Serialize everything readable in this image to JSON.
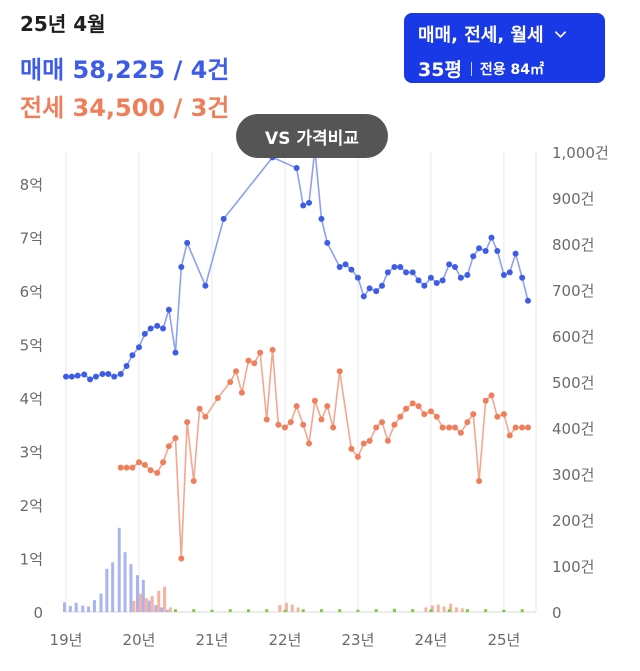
{
  "header": {
    "date": "25년 4월",
    "sale": "매매 58,225 / 4건",
    "jeonse": "전세 34,500 / 3건"
  },
  "filter": {
    "types": "매매, 전세, 월세",
    "size": "35평",
    "area": "전용 84㎡"
  },
  "compare_label": "VS 가격비교",
  "colors": {
    "sale": "#3d5ce8",
    "jeonse": "#ef7f5a",
    "filter_bg": "#1a39e6",
    "pill_bg": "#555555",
    "grid": "#e9e9e9",
    "volume_sale": "#aab4f0",
    "volume_jeonse": "#f5b3a0",
    "volume_rent": "#7ac943"
  },
  "chart_data": {
    "type": "line",
    "x_ticks": [
      "19년",
      "20년",
      "21년",
      "22년",
      "23년",
      "24년",
      "25년"
    ],
    "y_left_ticks": [
      "0",
      "1억",
      "2억",
      "3억",
      "4억",
      "5억",
      "6억",
      "7억",
      "8억"
    ],
    "y_left_range": [
      0,
      8.6
    ],
    "y_right_ticks": [
      "0",
      "100건",
      "200건",
      "300건",
      "400건",
      "500건",
      "600건",
      "700건",
      "800건",
      "900건",
      "1,000건"
    ],
    "y_right_range": [
      0,
      1000
    ],
    "grid": "vertical",
    "series": [
      {
        "key": "sale",
        "points": [
          [
            2019.0,
            4.4
          ],
          [
            2019.08,
            4.4
          ],
          [
            2019.16,
            4.42
          ],
          [
            2019.25,
            4.44
          ],
          [
            2019.33,
            4.35
          ],
          [
            2019.41,
            4.4
          ],
          [
            2019.5,
            4.45
          ],
          [
            2019.58,
            4.45
          ],
          [
            2019.66,
            4.4
          ],
          [
            2019.75,
            4.45
          ],
          [
            2019.83,
            4.6
          ],
          [
            2019.91,
            4.8
          ],
          [
            2020.0,
            4.95
          ],
          [
            2020.08,
            5.2
          ],
          [
            2020.16,
            5.3
          ],
          [
            2020.25,
            5.35
          ],
          [
            2020.33,
            5.3
          ],
          [
            2020.41,
            5.65
          ],
          [
            2020.5,
            4.85
          ],
          [
            2020.58,
            6.45
          ],
          [
            2020.66,
            6.9
          ],
          [
            2020.91,
            6.1
          ],
          [
            2021.16,
            7.35
          ],
          [
            2021.83,
            8.5
          ],
          [
            2022.16,
            8.3
          ],
          [
            2022.25,
            7.6
          ],
          [
            2022.33,
            7.65
          ],
          [
            2022.41,
            8.65
          ],
          [
            2022.5,
            7.35
          ],
          [
            2022.58,
            6.9
          ],
          [
            2022.75,
            6.45
          ],
          [
            2022.83,
            6.5
          ],
          [
            2022.91,
            6.4
          ],
          [
            2023.0,
            6.25
          ],
          [
            2023.08,
            5.9
          ],
          [
            2023.16,
            6.05
          ],
          [
            2023.25,
            6.0
          ],
          [
            2023.33,
            6.1
          ],
          [
            2023.41,
            6.35
          ],
          [
            2023.5,
            6.45
          ],
          [
            2023.58,
            6.45
          ],
          [
            2023.66,
            6.35
          ],
          [
            2023.75,
            6.35
          ],
          [
            2023.83,
            6.2
          ],
          [
            2023.91,
            6.1
          ],
          [
            2024.0,
            6.25
          ],
          [
            2024.08,
            6.15
          ],
          [
            2024.16,
            6.2
          ],
          [
            2024.25,
            6.5
          ],
          [
            2024.33,
            6.45
          ],
          [
            2024.41,
            6.25
          ],
          [
            2024.5,
            6.3
          ],
          [
            2024.58,
            6.65
          ],
          [
            2024.66,
            6.8
          ],
          [
            2024.75,
            6.75
          ],
          [
            2024.83,
            7.0
          ],
          [
            2024.91,
            6.75
          ],
          [
            2025.0,
            6.3
          ],
          [
            2025.08,
            6.35
          ],
          [
            2025.16,
            6.7
          ],
          [
            2025.25,
            6.25
          ],
          [
            2025.33,
            5.82
          ]
        ]
      },
      {
        "key": "jeonse",
        "points": [
          [
            2019.75,
            2.7
          ],
          [
            2019.83,
            2.7
          ],
          [
            2019.91,
            2.7
          ],
          [
            2020.0,
            2.8
          ],
          [
            2020.08,
            2.75
          ],
          [
            2020.16,
            2.65
          ],
          [
            2020.25,
            2.6
          ],
          [
            2020.33,
            2.8
          ],
          [
            2020.41,
            3.1
          ],
          [
            2020.5,
            3.25
          ],
          [
            2020.58,
            1.0
          ],
          [
            2020.66,
            3.55
          ],
          [
            2020.75,
            2.45
          ],
          [
            2020.83,
            3.8
          ],
          [
            2020.91,
            3.65
          ],
          [
            2021.08,
            4.0
          ],
          [
            2021.25,
            4.3
          ],
          [
            2021.33,
            4.5
          ],
          [
            2021.41,
            4.1
          ],
          [
            2021.5,
            4.7
          ],
          [
            2021.58,
            4.65
          ],
          [
            2021.66,
            4.85
          ],
          [
            2021.75,
            3.6
          ],
          [
            2021.83,
            4.9
          ],
          [
            2021.91,
            3.5
          ],
          [
            2022.0,
            3.45
          ],
          [
            2022.08,
            3.55
          ],
          [
            2022.16,
            3.85
          ],
          [
            2022.25,
            3.5
          ],
          [
            2022.33,
            3.15
          ],
          [
            2022.41,
            3.95
          ],
          [
            2022.5,
            3.6
          ],
          [
            2022.58,
            3.85
          ],
          [
            2022.66,
            3.45
          ],
          [
            2022.75,
            4.5
          ],
          [
            2022.91,
            3.05
          ],
          [
            2023.0,
            2.9
          ],
          [
            2023.08,
            3.15
          ],
          [
            2023.16,
            3.2
          ],
          [
            2023.25,
            3.45
          ],
          [
            2023.33,
            3.55
          ],
          [
            2023.41,
            3.2
          ],
          [
            2023.5,
            3.5
          ],
          [
            2023.58,
            3.65
          ],
          [
            2023.66,
            3.8
          ],
          [
            2023.75,
            3.9
          ],
          [
            2023.83,
            3.85
          ],
          [
            2023.91,
            3.7
          ],
          [
            2024.0,
            3.75
          ],
          [
            2024.08,
            3.65
          ],
          [
            2024.16,
            3.45
          ],
          [
            2024.25,
            3.45
          ],
          [
            2024.33,
            3.45
          ],
          [
            2024.41,
            3.35
          ],
          [
            2024.5,
            3.55
          ],
          [
            2024.58,
            3.7
          ],
          [
            2024.66,
            2.45
          ],
          [
            2024.75,
            3.95
          ],
          [
            2024.83,
            4.05
          ],
          [
            2024.91,
            3.65
          ],
          [
            2025.0,
            3.7
          ],
          [
            2025.08,
            3.3
          ],
          [
            2025.16,
            3.45
          ],
          [
            2025.25,
            3.45
          ],
          [
            2025.33,
            3.45
          ]
        ]
      }
    ],
    "volume_bars": [
      {
        "key": "sale",
        "values": [
          [
            2019.0,
            21
          ],
          [
            2019.08,
            13
          ],
          [
            2019.16,
            20
          ],
          [
            2019.25,
            14
          ],
          [
            2019.33,
            12
          ],
          [
            2019.41,
            26
          ],
          [
            2019.5,
            40
          ],
          [
            2019.58,
            94
          ],
          [
            2019.66,
            108
          ],
          [
            2019.75,
            183
          ],
          [
            2019.83,
            130
          ],
          [
            2019.91,
            104
          ],
          [
            2020.0,
            80
          ],
          [
            2020.08,
            70
          ],
          [
            2020.16,
            25
          ],
          [
            2020.25,
            15
          ],
          [
            2020.33,
            10
          ],
          [
            2020.41,
            5
          ]
        ]
      },
      {
        "key": "jeonse",
        "values": [
          [
            2019.91,
            24
          ],
          [
            2020.0,
            40
          ],
          [
            2020.08,
            30
          ],
          [
            2020.16,
            35
          ],
          [
            2020.25,
            46
          ],
          [
            2020.33,
            55
          ],
          [
            2020.41,
            10
          ],
          [
            2021.91,
            15
          ],
          [
            2022.0,
            20
          ],
          [
            2022.08,
            16
          ],
          [
            2022.16,
            10
          ],
          [
            2023.91,
            10
          ],
          [
            2024.0,
            14
          ],
          [
            2024.08,
            16
          ],
          [
            2024.16,
            12
          ],
          [
            2024.25,
            18
          ],
          [
            2024.33,
            10
          ],
          [
            2024.41,
            8
          ]
        ]
      },
      {
        "key": "rent",
        "values": [
          [
            2020.5,
            6
          ],
          [
            2020.75,
            6
          ],
          [
            2021.0,
            5
          ],
          [
            2021.25,
            6
          ],
          [
            2021.5,
            6
          ],
          [
            2021.75,
            6
          ],
          [
            2022.0,
            5
          ],
          [
            2022.25,
            6
          ],
          [
            2022.5,
            6
          ],
          [
            2022.75,
            6
          ],
          [
            2023.0,
            5
          ],
          [
            2023.25,
            6
          ],
          [
            2023.5,
            7
          ],
          [
            2023.75,
            6
          ],
          [
            2024.0,
            6
          ],
          [
            2024.25,
            6
          ],
          [
            2024.5,
            6
          ],
          [
            2024.75,
            6
          ],
          [
            2025.0,
            5
          ],
          [
            2025.25,
            6
          ]
        ]
      }
    ]
  }
}
